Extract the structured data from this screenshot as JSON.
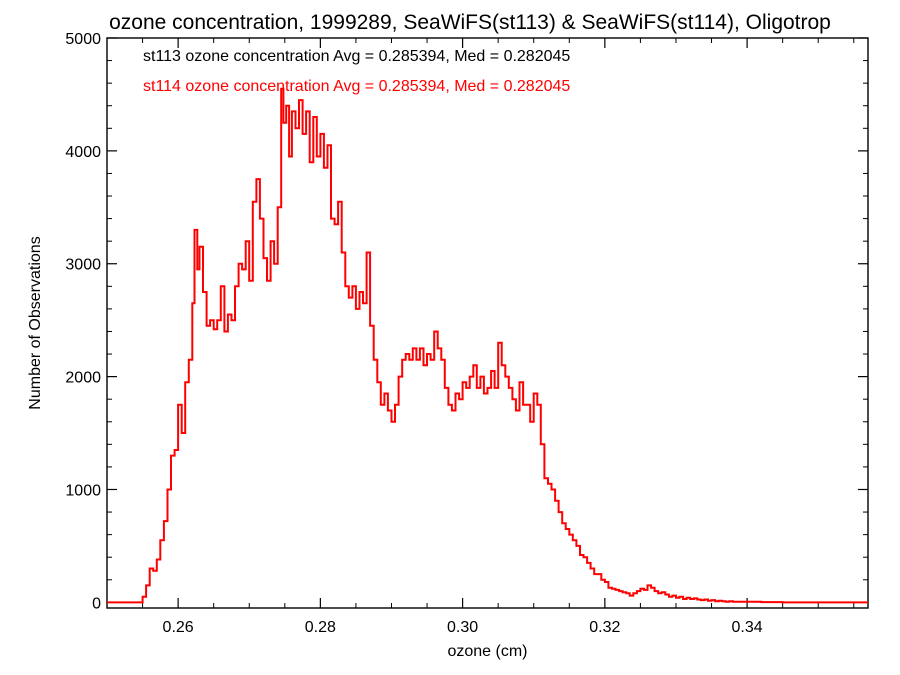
{
  "chart_data": {
    "type": "line",
    "step": true,
    "title": "ozone concentration, 1999289, SeaWiFS(st113) & SeaWiFS(st114), Oligotrop",
    "xlabel": "ozone (cm)",
    "ylabel": "Number of Observations",
    "xlim": [
      0.25,
      0.357
    ],
    "ylim": [
      -50,
      5000
    ],
    "xticks": [
      0.26,
      0.28,
      0.3,
      0.32,
      0.34
    ],
    "xtick_labels": [
      "0.26",
      "0.28",
      "0.30",
      "0.32",
      "0.34"
    ],
    "yticks": [
      0,
      1000,
      2000,
      3000,
      4000,
      5000
    ],
    "ytick_labels": [
      "0",
      "1000",
      "2000",
      "3000",
      "4000",
      "5000"
    ],
    "grid": false,
    "annotations": [
      {
        "text": "st113 ozone concentration Avg = 0.285394, Med = 0.282045",
        "color": "#000000"
      },
      {
        "text": "st114 ozone concentration Avg = 0.285394, Med = 0.282045",
        "color": "#ff0000"
      }
    ],
    "series": [
      {
        "color": "#ff0000",
        "points": [
          [
            0.25,
            0
          ],
          [
            0.2545,
            0
          ],
          [
            0.255,
            50
          ],
          [
            0.2555,
            150
          ],
          [
            0.256,
            300
          ],
          [
            0.2565,
            280
          ],
          [
            0.257,
            380
          ],
          [
            0.2575,
            550
          ],
          [
            0.258,
            720
          ],
          [
            0.2585,
            1000
          ],
          [
            0.259,
            1300
          ],
          [
            0.2595,
            1350
          ],
          [
            0.26,
            1750
          ],
          [
            0.2605,
            1500
          ],
          [
            0.261,
            1950
          ],
          [
            0.2615,
            2150
          ],
          [
            0.262,
            2650
          ],
          [
            0.2623,
            3300
          ],
          [
            0.2627,
            2950
          ],
          [
            0.263,
            3150
          ],
          [
            0.2635,
            2750
          ],
          [
            0.264,
            2450
          ],
          [
            0.2645,
            2500
          ],
          [
            0.265,
            2420
          ],
          [
            0.2655,
            2500
          ],
          [
            0.266,
            2800
          ],
          [
            0.2665,
            2400
          ],
          [
            0.267,
            2550
          ],
          [
            0.2675,
            2500
          ],
          [
            0.268,
            2800
          ],
          [
            0.2685,
            3000
          ],
          [
            0.269,
            2950
          ],
          [
            0.2695,
            3200
          ],
          [
            0.27,
            2850
          ],
          [
            0.2705,
            3550
          ],
          [
            0.271,
            3750
          ],
          [
            0.2715,
            3400
          ],
          [
            0.272,
            3050
          ],
          [
            0.2725,
            2850
          ],
          [
            0.273,
            3200
          ],
          [
            0.2735,
            3000
          ],
          [
            0.274,
            3500
          ],
          [
            0.2745,
            4550
          ],
          [
            0.2748,
            4250
          ],
          [
            0.2752,
            4400
          ],
          [
            0.2756,
            3950
          ],
          [
            0.276,
            4350
          ],
          [
            0.2765,
            4200
          ],
          [
            0.277,
            4450
          ],
          [
            0.2775,
            4150
          ],
          [
            0.278,
            4350
          ],
          [
            0.2785,
            3900
          ],
          [
            0.279,
            4300
          ],
          [
            0.2795,
            3950
          ],
          [
            0.28,
            4150
          ],
          [
            0.2805,
            3850
          ],
          [
            0.281,
            4050
          ],
          [
            0.2815,
            3400
          ],
          [
            0.282,
            3350
          ],
          [
            0.2825,
            3550
          ],
          [
            0.283,
            3100
          ],
          [
            0.2835,
            2800
          ],
          [
            0.284,
            2700
          ],
          [
            0.2845,
            2800
          ],
          [
            0.285,
            2600
          ],
          [
            0.2855,
            2750
          ],
          [
            0.286,
            2650
          ],
          [
            0.2865,
            3100
          ],
          [
            0.287,
            2450
          ],
          [
            0.2875,
            2150
          ],
          [
            0.288,
            1950
          ],
          [
            0.2885,
            1750
          ],
          [
            0.289,
            1850
          ],
          [
            0.2895,
            1700
          ],
          [
            0.29,
            1600
          ],
          [
            0.2905,
            1750
          ],
          [
            0.291,
            2000
          ],
          [
            0.2915,
            2150
          ],
          [
            0.292,
            2200
          ],
          [
            0.2925,
            2150
          ],
          [
            0.293,
            2250
          ],
          [
            0.2935,
            2150
          ],
          [
            0.294,
            2250
          ],
          [
            0.2945,
            2100
          ],
          [
            0.295,
            2200
          ],
          [
            0.2955,
            2150
          ],
          [
            0.296,
            2400
          ],
          [
            0.2965,
            2250
          ],
          [
            0.297,
            2150
          ],
          [
            0.2975,
            1900
          ],
          [
            0.298,
            1750
          ],
          [
            0.2985,
            1700
          ],
          [
            0.299,
            1850
          ],
          [
            0.2995,
            1800
          ],
          [
            0.3,
            1950
          ],
          [
            0.3005,
            1900
          ],
          [
            0.301,
            2000
          ],
          [
            0.3015,
            2100
          ],
          [
            0.302,
            1900
          ],
          [
            0.3025,
            2000
          ],
          [
            0.303,
            1850
          ],
          [
            0.3035,
            1900
          ],
          [
            0.304,
            2050
          ],
          [
            0.3045,
            1900
          ],
          [
            0.305,
            2300
          ],
          [
            0.3055,
            2100
          ],
          [
            0.306,
            2000
          ],
          [
            0.3065,
            1900
          ],
          [
            0.307,
            1800
          ],
          [
            0.3075,
            1700
          ],
          [
            0.308,
            1950
          ],
          [
            0.3085,
            1750
          ],
          [
            0.309,
            1750
          ],
          [
            0.3095,
            1600
          ],
          [
            0.31,
            1850
          ],
          [
            0.3105,
            1750
          ],
          [
            0.311,
            1400
          ],
          [
            0.3115,
            1100
          ],
          [
            0.312,
            1050
          ],
          [
            0.3125,
            1000
          ],
          [
            0.313,
            900
          ],
          [
            0.3135,
            800
          ],
          [
            0.314,
            700
          ],
          [
            0.3145,
            650
          ],
          [
            0.315,
            600
          ],
          [
            0.3155,
            550
          ],
          [
            0.316,
            500
          ],
          [
            0.3165,
            420
          ],
          [
            0.317,
            400
          ],
          [
            0.3175,
            350
          ],
          [
            0.318,
            300
          ],
          [
            0.3185,
            250
          ],
          [
            0.319,
            250
          ],
          [
            0.3195,
            200
          ],
          [
            0.32,
            180
          ],
          [
            0.3205,
            130
          ],
          [
            0.321,
            120
          ],
          [
            0.3215,
            110
          ],
          [
            0.322,
            100
          ],
          [
            0.3225,
            90
          ],
          [
            0.323,
            80
          ],
          [
            0.3235,
            60
          ],
          [
            0.324,
            80
          ],
          [
            0.3245,
            100
          ],
          [
            0.325,
            120
          ],
          [
            0.3255,
            110
          ],
          [
            0.326,
            150
          ],
          [
            0.3265,
            130
          ],
          [
            0.327,
            100
          ],
          [
            0.3275,
            80
          ],
          [
            0.328,
            90
          ],
          [
            0.3285,
            70
          ],
          [
            0.329,
            50
          ],
          [
            0.3295,
            60
          ],
          [
            0.33,
            40
          ],
          [
            0.3305,
            50
          ],
          [
            0.331,
            30
          ],
          [
            0.3315,
            40
          ],
          [
            0.332,
            30
          ],
          [
            0.3325,
            35
          ],
          [
            0.333,
            25
          ],
          [
            0.3335,
            20
          ],
          [
            0.334,
            25
          ],
          [
            0.3345,
            15
          ],
          [
            0.335,
            20
          ],
          [
            0.3355,
            10
          ],
          [
            0.336,
            15
          ],
          [
            0.3365,
            10
          ],
          [
            0.337,
            5
          ],
          [
            0.3375,
            10
          ],
          [
            0.338,
            5
          ],
          [
            0.34,
            5
          ],
          [
            0.342,
            2
          ],
          [
            0.345,
            0
          ],
          [
            0.35,
            0
          ],
          [
            0.357,
            0
          ]
        ]
      }
    ]
  }
}
